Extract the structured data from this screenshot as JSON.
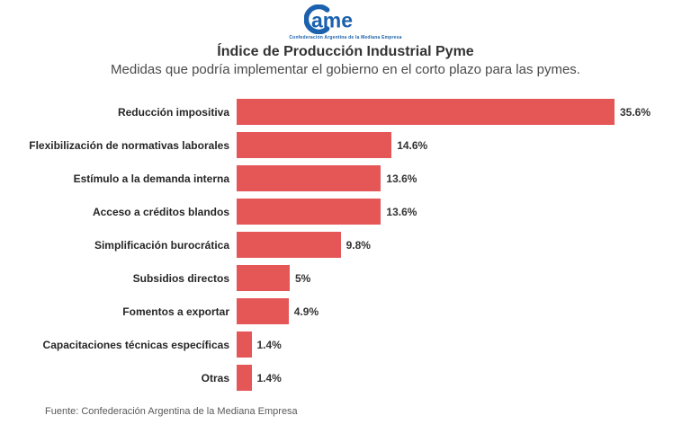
{
  "logo": {
    "brand": "Came",
    "brand_text": "ame",
    "tagline": "Confederación Argentina de la Mediana Empresa",
    "color": "#1b61ad"
  },
  "header": {
    "title": "Índice de Producción Industrial Pyme",
    "subtitle": "Medidas que podría implementar el gobierno en el corto plazo para las pymes."
  },
  "chart_data": {
    "type": "bar",
    "orientation": "horizontal",
    "title": "Índice de Producción Industrial Pyme",
    "subtitle": "Medidas que podría implementar el gobierno en el corto plazo para las pymes.",
    "categories": [
      "Reducción impositiva",
      "Flexibilización de normativas laborales",
      "Estímulo a la demanda interna",
      "Acceso a créditos blandos",
      "Simplificación burocrática",
      "Subsidios directos",
      "Fomentos a exportar",
      "Capacitaciones técnicas específicas",
      "Otras"
    ],
    "values": [
      35.6,
      14.6,
      13.6,
      13.6,
      9.8,
      5,
      4.9,
      1.4,
      1.4
    ],
    "value_labels": [
      "35.6%",
      "14.6%",
      "13.6%",
      "13.6%",
      "9.8%",
      "5%",
      "4.9%",
      "1.4%",
      "1.4%"
    ],
    "unit": "%",
    "bar_color": "#e55657",
    "xlim": [
      0,
      37
    ],
    "grid": false,
    "legend": false,
    "value_label_position": "outside-end"
  },
  "footer": {
    "source": "Fuente: Confederación Argentina de la Mediana Empresa"
  }
}
